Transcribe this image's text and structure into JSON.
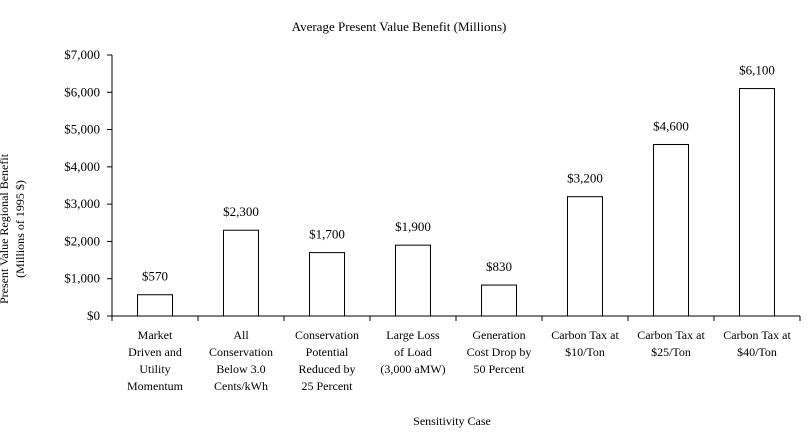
{
  "chart_data": {
    "type": "bar",
    "title": "Average Present Value Benefit (Millions)",
    "xlabel": "Sensitivity Case",
    "ylabel_lines": [
      "Present Value Regional Benefit",
      "(Millions  of 1995 $)"
    ],
    "ylim": [
      0,
      7000
    ],
    "yticks": [
      0,
      1000,
      2000,
      3000,
      4000,
      5000,
      6000,
      7000
    ],
    "ytick_labels": [
      "$0",
      "$1,000",
      "$2,000",
      "$3,000",
      "$4,000",
      "$5,000",
      "$6,000",
      "$7,000"
    ],
    "grid": false,
    "categories": [
      [
        "Market",
        "Driven and",
        "Utility",
        "Momentum"
      ],
      [
        "All",
        "Conservation",
        "Below 3.0",
        "Cents/kWh"
      ],
      [
        "Conservation",
        "Potential",
        "Reduced by",
        "25 Percent"
      ],
      [
        "Large Loss",
        "of Load",
        "(3,000 aMW)"
      ],
      [
        "Generation",
        "Cost Drop by",
        "50 Percent"
      ],
      [
        "Carbon Tax at",
        "$10/Ton"
      ],
      [
        "Carbon Tax at",
        "$25/Ton"
      ],
      [
        "Carbon Tax at",
        "$40/Ton"
      ]
    ],
    "values": [
      570,
      2300,
      1700,
      1900,
      830,
      3200,
      4600,
      6100
    ],
    "value_labels": [
      "$570",
      "$2,300",
      "$1,700",
      "$1,900",
      "$830",
      "$3,200",
      "$4,600",
      "$6,100"
    ],
    "bar_fill": "#ffffff",
    "bar_stroke": "#000000"
  }
}
